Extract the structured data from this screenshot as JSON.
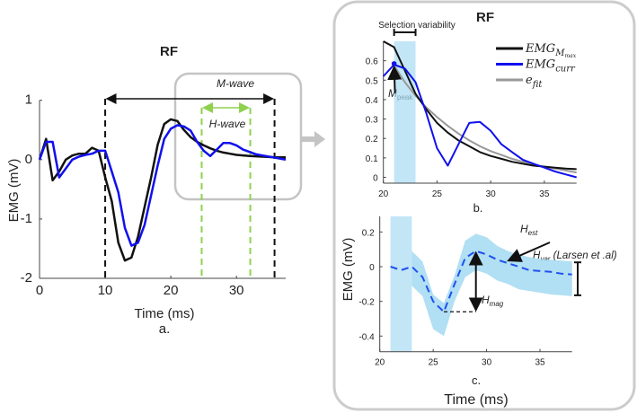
{
  "colors": {
    "black_series": "#111111",
    "blue_series": "#1010ee",
    "fit": "#999999",
    "band": "#a8dcf2",
    "green": "#8fd14f",
    "frame": "#cccccc"
  },
  "chart_data": [
    {
      "id": "a",
      "type": "line",
      "title": "RF",
      "xlabel": "Time (ms)",
      "ylabel": "EMG (mV)",
      "caption": "a.",
      "xlim": [
        0,
        37.5
      ],
      "ylim": [
        -2,
        1
      ],
      "xticks": [
        "0",
        "10",
        "20",
        "30"
      ],
      "xtick_values": [
        0,
        10,
        20,
        30
      ],
      "yticks": [
        "1",
        "0",
        "-1",
        "-2"
      ],
      "ytick_values": [
        1,
        0,
        -1,
        -2
      ],
      "series": [
        {
          "name": "EMG_Mmax",
          "color": "#111111",
          "x": [
            0,
            1,
            2,
            3,
            4,
            5,
            6,
            7,
            8,
            9,
            10,
            11,
            12,
            13,
            14,
            15,
            16,
            17,
            18,
            19,
            20,
            21,
            22,
            23,
            24,
            25,
            26,
            27,
            28,
            29,
            30,
            32,
            34,
            36,
            37.5
          ],
          "y": [
            0,
            0.35,
            -0.35,
            -0.2,
            0,
            0.07,
            0.1,
            0.1,
            0.2,
            0.15,
            -0.3,
            -0.7,
            -1.4,
            -1.7,
            -1.65,
            -1.3,
            -0.8,
            -0.3,
            0.25,
            0.6,
            0.68,
            0.65,
            0.5,
            0.38,
            0.3,
            0.24,
            0.19,
            0.15,
            0.12,
            0.1,
            0.08,
            0.06,
            0.05,
            0.04,
            0.04
          ]
        },
        {
          "name": "EMG_curr",
          "color": "#1010ee",
          "x": [
            0,
            1,
            2,
            3,
            4,
            5,
            6,
            7,
            8,
            9,
            10,
            11,
            12,
            13,
            14,
            15,
            16,
            17,
            18,
            19,
            20,
            21,
            22,
            23,
            24,
            25,
            26,
            27,
            28,
            29,
            30,
            31,
            32,
            33,
            34,
            35,
            36,
            37,
            37.5
          ],
          "y": [
            0,
            0.3,
            0.3,
            -0.3,
            -0.15,
            0,
            0.05,
            0.08,
            0.1,
            0.15,
            0.15,
            -0.2,
            -0.55,
            -1.15,
            -1.45,
            -1.4,
            -1.1,
            -0.6,
            -0.1,
            0.35,
            0.52,
            0.58,
            0.56,
            0.49,
            0.3,
            0.15,
            0.06,
            0.17,
            0.28,
            0.28,
            0.24,
            0.17,
            0.13,
            0.09,
            0.07,
            0.05,
            0.03,
            0.01,
            0
          ]
        }
      ],
      "annotations": {
        "m_wave": {
          "label": "M-wave",
          "x_range": [
            10,
            35.8
          ]
        },
        "h_wave": {
          "label": "H-wave",
          "x_range": [
            24.7,
            32.1
          ]
        }
      }
    },
    {
      "id": "b",
      "type": "line",
      "title": "RF",
      "caption": "b.",
      "xlim": [
        20,
        38
      ],
      "ylim": [
        -0.03,
        0.7
      ],
      "xticks": [
        "20",
        "25",
        "30",
        "35"
      ],
      "xtick_values": [
        20,
        25,
        30,
        35
      ],
      "yticks": [
        "0.6",
        "0.5",
        "0.4",
        "0.3",
        "0.2",
        "0.1",
        "0"
      ],
      "ytick_values": [
        0.6,
        0.5,
        0.4,
        0.3,
        0.2,
        0.1,
        0
      ],
      "shaded_x_range": [
        21,
        23
      ],
      "selection_label": "Selection variability",
      "legend": {
        "position": "top-right",
        "entries": [
          {
            "base": "EMG",
            "sub": "M",
            "subsub": "max",
            "color": "#111111"
          },
          {
            "base": "EMG",
            "sub": "curr",
            "color": "#1010ee"
          },
          {
            "base": "e",
            "sub": "fit",
            "color": "#999999"
          }
        ]
      },
      "series": [
        {
          "name": "EMG_Mmax",
          "color": "#111111",
          "x": [
            20,
            21,
            22,
            23,
            24,
            25,
            26,
            27,
            28,
            29,
            30,
            31,
            32,
            33,
            34,
            35,
            36,
            37,
            38
          ],
          "y": [
            0.7,
            0.67,
            0.55,
            0.43,
            0.35,
            0.28,
            0.23,
            0.19,
            0.16,
            0.13,
            0.11,
            0.095,
            0.08,
            0.07,
            0.06,
            0.055,
            0.05,
            0.045,
            0.042
          ]
        },
        {
          "name": "EMG_curr",
          "color": "#1010ee",
          "x": [
            20,
            21,
            22,
            23,
            24,
            25,
            26,
            27,
            28,
            29,
            30,
            31,
            32,
            33,
            34,
            35,
            36,
            37,
            38
          ],
          "y": [
            0.52,
            0.58,
            0.56,
            0.49,
            0.33,
            0.15,
            0.06,
            0.17,
            0.28,
            0.285,
            0.24,
            0.17,
            0.13,
            0.09,
            0.07,
            0.05,
            0.03,
            0.015,
            0
          ]
        },
        {
          "name": "e_fit",
          "color": "#999999",
          "x": [
            21,
            22,
            23,
            24,
            25,
            26,
            27,
            28,
            29,
            30,
            31,
            32,
            33,
            34,
            35,
            36,
            37,
            38
          ],
          "y": [
            0.575,
            0.49,
            0.42,
            0.36,
            0.31,
            0.265,
            0.225,
            0.19,
            0.16,
            0.135,
            0.115,
            0.095,
            0.08,
            0.065,
            0.055,
            0.045,
            0.035,
            0.025
          ]
        }
      ],
      "mpeak": {
        "label": "M",
        "sub": "peak",
        "x": 21,
        "y": 0.585
      }
    },
    {
      "id": "c",
      "type": "line",
      "caption": "c.",
      "xlabel": "Time (ms)",
      "ylabel": "EMG (mV)",
      "xlim": [
        20,
        38
      ],
      "ylim": [
        -0.49,
        0.29
      ],
      "xticks": [
        "20",
        "25",
        "30",
        "35"
      ],
      "xtick_values": [
        20,
        25,
        30,
        35
      ],
      "yticks": [
        "0.2",
        "0",
        "-0.2",
        "-0.4"
      ],
      "ytick_values": [
        0.2,
        0,
        -0.2,
        -0.4
      ],
      "shaded_x_range": [
        21,
        23
      ],
      "mean": {
        "x": [
          21,
          22,
          23,
          24,
          25,
          26,
          27,
          28,
          29,
          30,
          31,
          32,
          33,
          34,
          35,
          36,
          37,
          38
        ],
        "y": [
          0,
          -0.02,
          0,
          -0.06,
          -0.2,
          -0.26,
          -0.1,
          0.05,
          0.09,
          0.07,
          0.04,
          0.02,
          0,
          -0.02,
          -0.025,
          -0.03,
          -0.04,
          -0.045
        ]
      },
      "band": {
        "x": [
          23,
          24,
          25,
          26,
          27,
          28,
          29,
          30,
          31,
          32,
          33,
          34,
          35,
          36,
          37,
          38
        ],
        "upper": [
          0.09,
          0.03,
          -0.16,
          -0.21,
          -0.05,
          0.15,
          0.19,
          0.17,
          0.12,
          0.09,
          0.07,
          0.055,
          0.045,
          0.04,
          0.035,
          0.03
        ],
        "lower": [
          -0.11,
          -0.17,
          -0.36,
          -0.4,
          -0.2,
          -0.06,
          -0.02,
          -0.04,
          -0.08,
          -0.1,
          -0.13,
          -0.14,
          -0.15,
          -0.16,
          -0.165,
          -0.17
        ]
      },
      "annotations": {
        "h_est": {
          "base": "H",
          "sub": "est"
        },
        "h_var": {
          "base": "H",
          "sub": "var",
          "suffix": " (Larsen et .al)",
          "range": [
            -0.165,
            0.025
          ]
        },
        "h_mag": {
          "base": "H",
          "sub": "mag",
          "x": 29,
          "y_range": [
            -0.26,
            0.09
          ]
        }
      }
    }
  ]
}
